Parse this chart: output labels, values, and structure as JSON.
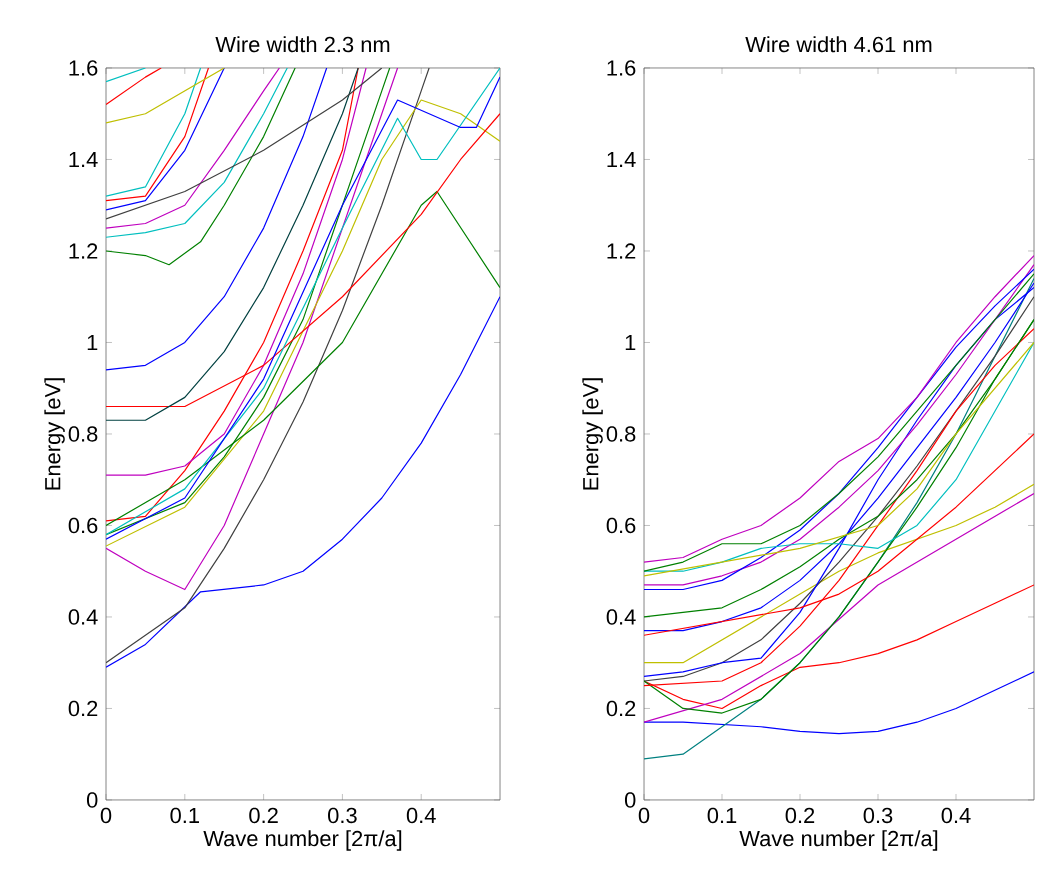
{
  "chart_data": [
    {
      "type": "line",
      "title": "Wire width 2.3 nm",
      "xlabel": "Wave number [2π/a]",
      "ylabel": "Energy [eV]",
      "xlim": [
        0,
        0.5
      ],
      "ylim": [
        0,
        1.6
      ],
      "xticks": [
        0,
        0.1,
        0.2,
        0.3,
        0.4
      ],
      "yticks": [
        0,
        0.2,
        0.4,
        0.6,
        0.8,
        1,
        1.2,
        1.4,
        1.6
      ],
      "grid": false,
      "line_style": "solid",
      "series": [
        {
          "color": "#0000ff",
          "x": [
            0,
            0.05,
            0.12,
            0.2,
            0.25,
            0.3,
            0.35,
            0.4,
            0.45,
            0.5
          ],
          "values": [
            0.29,
            0.34,
            0.455,
            0.47,
            0.5,
            0.57,
            0.66,
            0.78,
            0.93,
            1.1
          ]
        },
        {
          "color": "#404040",
          "x": [
            0,
            0.1,
            0.15,
            0.2,
            0.25,
            0.3,
            0.35,
            0.4,
            0.41
          ],
          "values": [
            0.3,
            0.42,
            0.55,
            0.7,
            0.87,
            1.07,
            1.3,
            1.55,
            1.6
          ]
        },
        {
          "color": "#bf00bf",
          "x": [
            0,
            0.05,
            0.1,
            0.15,
            0.2,
            0.25,
            0.3,
            0.35,
            0.37
          ],
          "values": [
            0.55,
            0.5,
            0.46,
            0.6,
            0.8,
            1.0,
            1.25,
            1.5,
            1.6
          ]
        },
        {
          "color": "#008000",
          "x": [
            0,
            0.1,
            0.15,
            0.2,
            0.25,
            0.3,
            0.35,
            0.36
          ],
          "values": [
            0.58,
            0.65,
            0.75,
            0.88,
            1.05,
            1.3,
            1.55,
            1.6
          ]
        },
        {
          "color": "#bfbf00",
          "x": [
            0,
            0.1,
            0.2,
            0.3,
            0.35,
            0.4,
            0.45,
            0.5
          ],
          "values": [
            0.555,
            0.64,
            0.85,
            1.2,
            1.4,
            1.53,
            1.5,
            1.44
          ]
        },
        {
          "color": "#ff0000",
          "x": [
            0,
            0.05,
            0.1,
            0.15,
            0.2,
            0.25,
            0.3,
            0.32
          ],
          "values": [
            0.61,
            0.62,
            0.72,
            0.85,
            1.0,
            1.2,
            1.42,
            1.6
          ]
        },
        {
          "color": "#bf00bf",
          "x": [
            0,
            0.05,
            0.1,
            0.15,
            0.2,
            0.25,
            0.3,
            0.33
          ],
          "values": [
            0.71,
            0.71,
            0.73,
            0.8,
            0.95,
            1.15,
            1.4,
            1.6
          ]
        },
        {
          "color": "#008000",
          "x": [
            0,
            0.1,
            0.2,
            0.3,
            0.4,
            0.42,
            0.5
          ],
          "values": [
            0.6,
            0.7,
            0.83,
            1.0,
            1.3,
            1.33,
            1.12
          ]
        },
        {
          "color": "#ff0000",
          "x": [
            0,
            0.1,
            0.2,
            0.3,
            0.4,
            0.45,
            0.5
          ],
          "values": [
            0.86,
            0.86,
            0.95,
            1.1,
            1.28,
            1.4,
            1.5
          ]
        },
        {
          "color": "#00bfbf",
          "x": [
            0,
            0.1,
            0.2,
            0.3,
            0.37,
            0.4,
            0.42,
            0.5
          ],
          "values": [
            0.58,
            0.68,
            0.9,
            1.25,
            1.49,
            1.4,
            1.4,
            1.6
          ]
        },
        {
          "color": "#0000ff",
          "x": [
            0,
            0.1,
            0.2,
            0.3,
            0.37,
            0.45,
            0.47,
            0.5
          ],
          "values": [
            0.57,
            0.66,
            0.92,
            1.3,
            1.53,
            1.47,
            1.47,
            1.58
          ]
        },
        {
          "color": "#004040",
          "x": [
            0,
            0.05,
            0.1,
            0.15,
            0.2,
            0.25,
            0.3,
            0.32
          ],
          "values": [
            0.83,
            0.83,
            0.88,
            0.98,
            1.12,
            1.3,
            1.5,
            1.6
          ]
        },
        {
          "color": "#0000ff",
          "x": [
            0,
            0.05,
            0.1,
            0.15,
            0.2,
            0.25,
            0.28
          ],
          "values": [
            0.94,
            0.95,
            1.0,
            1.1,
            1.25,
            1.45,
            1.6
          ]
        },
        {
          "color": "#008000",
          "x": [
            0,
            0.05,
            0.08,
            0.12,
            0.15,
            0.2,
            0.24
          ],
          "values": [
            1.2,
            1.19,
            1.17,
            1.22,
            1.3,
            1.45,
            1.6
          ]
        },
        {
          "color": "#00bfbf",
          "x": [
            0,
            0.05,
            0.1,
            0.15,
            0.2,
            0.23
          ],
          "values": [
            1.23,
            1.24,
            1.26,
            1.35,
            1.5,
            1.6
          ]
        },
        {
          "color": "#bf00bf",
          "x": [
            0,
            0.05,
            0.1,
            0.15,
            0.2,
            0.22
          ],
          "values": [
            1.25,
            1.26,
            1.3,
            1.42,
            1.55,
            1.6
          ]
        },
        {
          "color": "#404040",
          "x": [
            0,
            0.1,
            0.2,
            0.3,
            0.35
          ],
          "values": [
            1.27,
            1.33,
            1.42,
            1.53,
            1.6
          ]
        },
        {
          "color": "#0000ff",
          "x": [
            0,
            0.05,
            0.1,
            0.15
          ],
          "values": [
            1.29,
            1.31,
            1.42,
            1.6
          ]
        },
        {
          "color": "#ff0000",
          "x": [
            0,
            0.05,
            0.1,
            0.13
          ],
          "values": [
            1.31,
            1.32,
            1.45,
            1.6
          ]
        },
        {
          "color": "#00bfbf",
          "x": [
            0,
            0.05,
            0.1,
            0.12
          ],
          "values": [
            1.32,
            1.34,
            1.5,
            1.6
          ]
        },
        {
          "color": "#bfbf00",
          "x": [
            0,
            0.05,
            0.1,
            0.15
          ],
          "values": [
            1.48,
            1.5,
            1.55,
            1.6
          ]
        },
        {
          "color": "#ff0000",
          "x": [
            0,
            0.05,
            0.07
          ],
          "values": [
            1.52,
            1.58,
            1.6
          ]
        },
        {
          "color": "#00bfbf",
          "x": [
            0,
            0.05
          ],
          "values": [
            1.57,
            1.6
          ]
        }
      ]
    },
    {
      "type": "line",
      "title": "Wire width 4.61 nm",
      "xlabel": "Wave number [2π/a]",
      "ylabel": "Energy [eV]",
      "xlim": [
        0,
        0.5
      ],
      "ylim": [
        0,
        1.6
      ],
      "xticks": [
        0,
        0.1,
        0.2,
        0.3,
        0.4
      ],
      "yticks": [
        0,
        0.2,
        0.4,
        0.6,
        0.8,
        1,
        1.2,
        1.4,
        1.6
      ],
      "grid": false,
      "line_style": "solid",
      "series": [
        {
          "color": "#0000ff",
          "x": [
            0,
            0.05,
            0.1,
            0.15,
            0.2,
            0.25,
            0.3,
            0.35,
            0.4,
            0.45,
            0.5
          ],
          "values": [
            0.17,
            0.17,
            0.165,
            0.16,
            0.15,
            0.145,
            0.15,
            0.17,
            0.2,
            0.24,
            0.28
          ]
        },
        {
          "color": "#008080",
          "x": [
            0,
            0.05,
            0.1,
            0.15,
            0.2,
            0.25,
            0.3,
            0.35,
            0.4,
            0.45,
            0.5
          ],
          "values": [
            0.09,
            0.1,
            0.16,
            0.22,
            0.3,
            0.4,
            0.52,
            0.65,
            0.8,
            0.97,
            1.14
          ]
        },
        {
          "color": "#ff0000",
          "x": [
            0,
            0.05,
            0.1,
            0.15,
            0.2,
            0.25,
            0.3,
            0.35,
            0.4,
            0.45,
            0.5
          ],
          "values": [
            0.26,
            0.22,
            0.2,
            0.25,
            0.29,
            0.3,
            0.32,
            0.35,
            0.39,
            0.43,
            0.47
          ]
        },
        {
          "color": "#bfbf00",
          "x": [
            0,
            0.05,
            0.1,
            0.2,
            0.25,
            0.3,
            0.35,
            0.4,
            0.45,
            0.5
          ],
          "values": [
            0.3,
            0.3,
            0.35,
            0.45,
            0.5,
            0.54,
            0.57,
            0.6,
            0.64,
            0.69
          ]
        },
        {
          "color": "#bf00bf",
          "x": [
            0,
            0.1,
            0.2,
            0.3,
            0.35,
            0.4,
            0.45,
            0.5
          ],
          "values": [
            0.17,
            0.22,
            0.32,
            0.47,
            0.52,
            0.57,
            0.62,
            0.67
          ]
        },
        {
          "color": "#404040",
          "x": [
            0,
            0.05,
            0.1,
            0.15,
            0.2,
            0.25,
            0.3,
            0.35,
            0.4,
            0.45,
            0.5
          ],
          "values": [
            0.26,
            0.27,
            0.3,
            0.35,
            0.43,
            0.52,
            0.62,
            0.73,
            0.85,
            0.97,
            1.1
          ]
        },
        {
          "color": "#0000ff",
          "x": [
            0,
            0.05,
            0.1,
            0.15,
            0.2,
            0.25,
            0.3,
            0.35,
            0.4,
            0.45,
            0.5
          ],
          "values": [
            0.27,
            0.28,
            0.3,
            0.31,
            0.41,
            0.55,
            0.7,
            0.83,
            0.95,
            1.05,
            1.12
          ]
        },
        {
          "color": "#008000",
          "x": [
            0,
            0.05,
            0.1,
            0.15,
            0.2,
            0.25,
            0.3,
            0.35,
            0.4,
            0.45,
            0.5
          ],
          "values": [
            0.26,
            0.2,
            0.19,
            0.22,
            0.3,
            0.4,
            0.52,
            0.64,
            0.77,
            0.92,
            1.05
          ]
        },
        {
          "color": "#ff0000",
          "x": [
            0,
            0.1,
            0.15,
            0.2,
            0.25,
            0.3,
            0.35,
            0.4,
            0.45,
            0.5
          ],
          "values": [
            0.25,
            0.26,
            0.3,
            0.38,
            0.48,
            0.6,
            0.72,
            0.85,
            0.95,
            1.03
          ]
        },
        {
          "color": "#0000ff",
          "x": [
            0,
            0.05,
            0.1,
            0.15,
            0.2,
            0.25,
            0.3,
            0.35,
            0.4,
            0.45,
            0.5
          ],
          "values": [
            0.37,
            0.37,
            0.39,
            0.42,
            0.48,
            0.56,
            0.66,
            0.77,
            0.88,
            1.0,
            1.13
          ]
        },
        {
          "color": "#008000",
          "x": [
            0,
            0.05,
            0.1,
            0.15,
            0.2,
            0.25,
            0.3,
            0.35,
            0.4,
            0.45,
            0.5
          ],
          "values": [
            0.4,
            0.41,
            0.42,
            0.46,
            0.51,
            0.57,
            0.62,
            0.7,
            0.8,
            0.92,
            1.05
          ]
        },
        {
          "color": "#ff0000",
          "x": [
            0,
            0.1,
            0.2,
            0.25,
            0.3,
            0.4,
            0.5
          ],
          "values": [
            0.36,
            0.39,
            0.42,
            0.45,
            0.5,
            0.64,
            0.8
          ]
        },
        {
          "color": "#bf00bf",
          "x": [
            0,
            0.05,
            0.1,
            0.15,
            0.2,
            0.25,
            0.3,
            0.35,
            0.4,
            0.45,
            0.5
          ],
          "values": [
            0.47,
            0.47,
            0.49,
            0.52,
            0.57,
            0.64,
            0.72,
            0.82,
            0.93,
            1.05,
            1.17
          ]
        },
        {
          "color": "#0000ff",
          "x": [
            0,
            0.05,
            0.1,
            0.15,
            0.2,
            0.25,
            0.3,
            0.35,
            0.4,
            0.45,
            0.5
          ],
          "values": [
            0.46,
            0.46,
            0.48,
            0.53,
            0.59,
            0.67,
            0.77,
            0.88,
            0.99,
            1.08,
            1.16
          ]
        },
        {
          "color": "#00bfbf",
          "x": [
            0,
            0.05,
            0.1,
            0.15,
            0.2,
            0.25,
            0.3,
            0.35,
            0.4,
            0.45,
            0.5
          ],
          "values": [
            0.5,
            0.5,
            0.52,
            0.55,
            0.56,
            0.56,
            0.55,
            0.6,
            0.7,
            0.85,
            1.0
          ]
        },
        {
          "color": "#008000",
          "x": [
            0,
            0.05,
            0.1,
            0.15,
            0.2,
            0.25,
            0.3,
            0.35,
            0.4,
            0.45,
            0.5
          ],
          "values": [
            0.5,
            0.52,
            0.56,
            0.56,
            0.6,
            0.67,
            0.75,
            0.85,
            0.95,
            1.05,
            1.15
          ]
        },
        {
          "color": "#bf00bf",
          "x": [
            0,
            0.05,
            0.1,
            0.15,
            0.2,
            0.25,
            0.3,
            0.35,
            0.4,
            0.45,
            0.5
          ],
          "values": [
            0.52,
            0.53,
            0.57,
            0.6,
            0.66,
            0.74,
            0.79,
            0.88,
            1.0,
            1.1,
            1.19
          ]
        },
        {
          "color": "#bfbf00",
          "x": [
            0,
            0.1,
            0.2,
            0.3,
            0.35,
            0.4,
            0.45,
            0.5
          ],
          "values": [
            0.49,
            0.52,
            0.55,
            0.6,
            0.68,
            0.8,
            0.9,
            1.0
          ]
        }
      ]
    }
  ]
}
